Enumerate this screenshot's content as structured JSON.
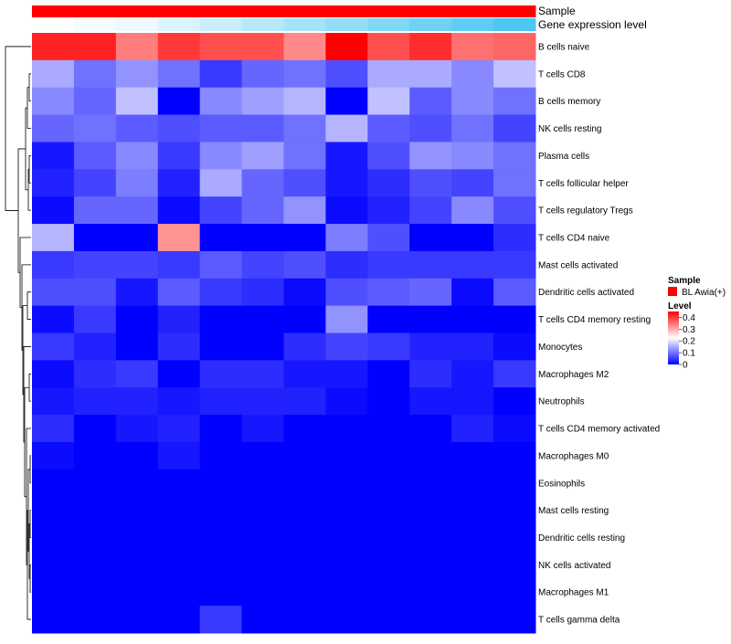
{
  "chart_data": {
    "type": "heatmap",
    "title": "",
    "rows": [
      "B cells naive",
      "T cells CD8",
      "B cells memory",
      "NK cells resting",
      "Plasma cells",
      "T cells follicular helper",
      "T cells regulatory  Tregs",
      "T cells CD4 naive",
      "Mast cells activated",
      "Dendritic cells activated",
      "T cells CD4 memory resting",
      "Monocytes",
      "Macrophages M2",
      "Neutrophils",
      "T cells CD4 memory activated",
      "Macrophages M0",
      "Eosinophils",
      "Mast cells resting",
      "Dendritic cells resting",
      "NK cells activated",
      "Macrophages M1",
      "T cells gamma delta"
    ],
    "n_columns": 12,
    "values": [
      [
        0.42,
        0.42,
        0.34,
        0.4,
        0.38,
        0.38,
        0.33,
        0.45,
        0.38,
        0.41,
        0.35,
        0.36
      ],
      [
        0.15,
        0.1,
        0.13,
        0.1,
        0.05,
        0.09,
        0.1,
        0.07,
        0.15,
        0.15,
        0.12,
        0.17
      ],
      [
        0.12,
        0.09,
        0.17,
        0.0,
        0.12,
        0.14,
        0.16,
        0.0,
        0.17,
        0.08,
        0.12,
        0.1
      ],
      [
        0.09,
        0.1,
        0.08,
        0.07,
        0.08,
        0.08,
        0.1,
        0.16,
        0.08,
        0.07,
        0.1,
        0.06
      ],
      [
        0.02,
        0.08,
        0.12,
        0.05,
        0.12,
        0.14,
        0.1,
        0.02,
        0.07,
        0.13,
        0.12,
        0.1
      ],
      [
        0.03,
        0.06,
        0.11,
        0.03,
        0.15,
        0.09,
        0.07,
        0.02,
        0.04,
        0.07,
        0.06,
        0.1
      ],
      [
        0.01,
        0.09,
        0.09,
        0.01,
        0.06,
        0.09,
        0.13,
        0.01,
        0.03,
        0.06,
        0.12,
        0.07
      ],
      [
        0.16,
        0.0,
        0.0,
        0.32,
        0.0,
        0.0,
        0.0,
        0.11,
        0.07,
        0.0,
        0.0,
        0.04
      ],
      [
        0.05,
        0.06,
        0.06,
        0.05,
        0.08,
        0.06,
        0.07,
        0.04,
        0.05,
        0.05,
        0.05,
        0.05
      ],
      [
        0.07,
        0.07,
        0.02,
        0.08,
        0.05,
        0.04,
        0.01,
        0.07,
        0.08,
        0.09,
        0.01,
        0.08
      ],
      [
        0.01,
        0.05,
        0.0,
        0.03,
        0.0,
        0.0,
        0.0,
        0.13,
        0.0,
        0.0,
        0.0,
        0.0
      ],
      [
        0.05,
        0.03,
        0.0,
        0.04,
        0.0,
        0.0,
        0.04,
        0.06,
        0.05,
        0.03,
        0.03,
        0.01
      ],
      [
        0.01,
        0.04,
        0.05,
        0.0,
        0.04,
        0.04,
        0.02,
        0.02,
        0.0,
        0.04,
        0.02,
        0.05
      ],
      [
        0.02,
        0.03,
        0.03,
        0.02,
        0.03,
        0.03,
        0.03,
        0.01,
        0.0,
        0.02,
        0.02,
        0.0
      ],
      [
        0.04,
        0.0,
        0.02,
        0.03,
        0.0,
        0.02,
        0.0,
        0.0,
        0.0,
        0.0,
        0.03,
        0.01
      ],
      [
        0.01,
        0.0,
        0.0,
        0.02,
        0.0,
        0.0,
        0.0,
        0.0,
        0.0,
        0.0,
        0.0,
        0.0
      ],
      [
        0.0,
        0.0,
        0.0,
        0.0,
        0.0,
        0.0,
        0.0,
        0.0,
        0.0,
        0.0,
        0.0,
        0.0
      ],
      [
        0.0,
        0.0,
        0.0,
        0.0,
        0.0,
        0.0,
        0.0,
        0.0,
        0.0,
        0.0,
        0.0,
        0.0
      ],
      [
        0.0,
        0.0,
        0.0,
        0.0,
        0.0,
        0.0,
        0.0,
        0.0,
        0.0,
        0.0,
        0.0,
        0.0
      ],
      [
        0.0,
        0.0,
        0.0,
        0.0,
        0.0,
        0.0,
        0.0,
        0.0,
        0.0,
        0.0,
        0.0,
        0.0
      ],
      [
        0.0,
        0.0,
        0.0,
        0.0,
        0.0,
        0.0,
        0.0,
        0.0,
        0.0,
        0.0,
        0.0,
        0.0
      ],
      [
        0.0,
        0.0,
        0.0,
        0.0,
        0.05,
        0.0,
        0.0,
        0.0,
        0.0,
        0.0,
        0.0,
        0.0
      ]
    ],
    "annotations": {
      "sample": {
        "label": "Sample",
        "values": [
          "BL Awia(+)",
          "BL Awia(+)",
          "BL Awia(+)",
          "BL Awia(+)",
          "BL Awia(+)",
          "BL Awia(+)",
          "BL Awia(+)",
          "BL Awia(+)",
          "BL Awia(+)",
          "BL Awia(+)",
          "BL Awia(+)",
          "BL Awia(+)"
        ],
        "color": "#ff0000"
      },
      "gene_expression": {
        "label": "Gene expression level",
        "values": [
          0.0,
          0.05,
          0.1,
          0.2,
          0.3,
          0.4,
          0.5,
          0.6,
          0.7,
          0.8,
          0.9,
          1.0
        ],
        "low_color": "#ffffff",
        "high_color": "#4dc6f2"
      }
    },
    "legend": {
      "sample_title": "Sample",
      "sample_entry": "BL Awia(+)",
      "level_title": "Level",
      "level_ticks": [
        "0",
        "0.1",
        "0.2",
        "0.3",
        "0.4"
      ],
      "placement": "right"
    },
    "colorscale": {
      "low": "#0000ff",
      "mid": "#ffffff",
      "high": "#ff0000",
      "range": [
        0,
        0.45
      ],
      "midpoint": 0.225
    }
  }
}
